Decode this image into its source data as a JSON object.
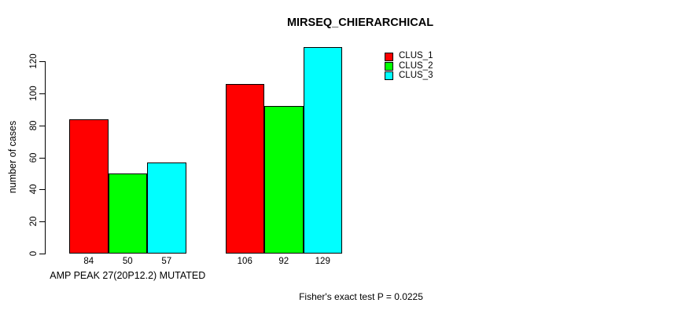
{
  "chart_data": {
    "type": "bar",
    "title": "MIRSEQ_CHIERARCHICAL",
    "xlabel": "",
    "ylabel": "number of cases",
    "ylim": [
      0,
      120
    ],
    "yticks": [
      0,
      20,
      40,
      60,
      80,
      100,
      120
    ],
    "grid": false,
    "legend_position": "top-right",
    "categories": [
      "AMP PEAK 27(20P12.2) MUTATED",
      ""
    ],
    "series": [
      {
        "name": "CLUS_1",
        "color": "#ff0000",
        "values": [
          84,
          106
        ]
      },
      {
        "name": "CLUS_2",
        "color": "#00ff00",
        "values": [
          50,
          92
        ]
      },
      {
        "name": "CLUS_3",
        "color": "#00ffff",
        "values": [
          57,
          129
        ]
      }
    ],
    "bar_value_labels": [
      [
        "84",
        "50",
        "57"
      ],
      [
        "106",
        "92",
        "129"
      ]
    ],
    "annotation": "Fisher's exact test P = 0.0225"
  }
}
